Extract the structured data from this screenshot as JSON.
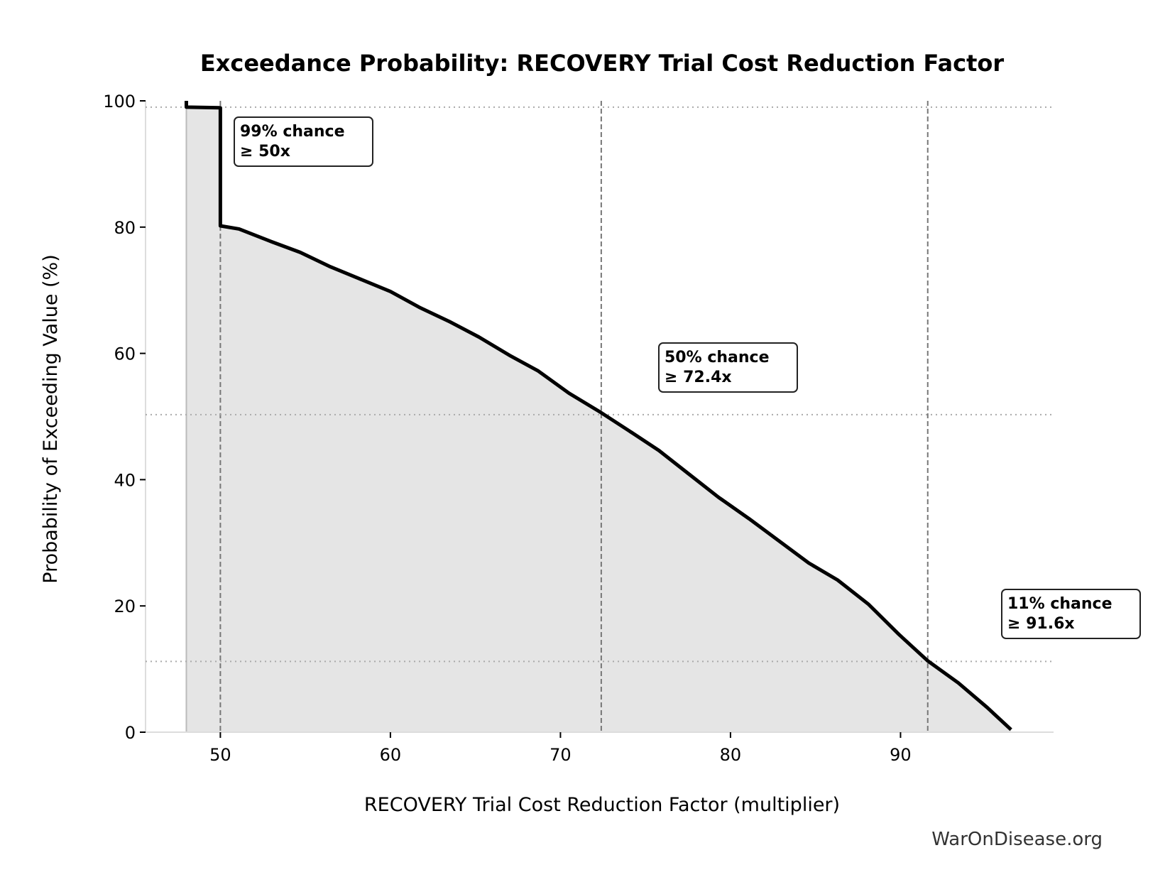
{
  "chart_data": {
    "type": "area",
    "title": "Exceedance Probability: RECOVERY Trial Cost Reduction Factor",
    "xlabel": "RECOVERY Trial Cost Reduction Factor (multiplier)",
    "ylabel": "Probability of Exceeding Value (%)",
    "xlim": [
      45.6,
      99.0
    ],
    "ylim": [
      0,
      100
    ],
    "xticks": [
      50,
      60,
      70,
      80,
      90
    ],
    "yticks": [
      0,
      20,
      40,
      60,
      80,
      100
    ],
    "grid": false,
    "line_color": "#000000",
    "fill_color": "#e5e5e5",
    "x": [
      48,
      48,
      50,
      50,
      51.1,
      52.9,
      54.7,
      56.4,
      58.2,
      60,
      61.7,
      63.5,
      65.2,
      67.0,
      68.7,
      70.5,
      72.4,
      74.0,
      75.8,
      77.5,
      79.3,
      81.1,
      82.8,
      84.6,
      86.3,
      88.1,
      89.9,
      91.6,
      93.4,
      95.1,
      96.5
    ],
    "y": [
      100,
      99,
      98.9,
      80.2,
      79.7,
      77.8,
      76.0,
      73.8,
      71.8,
      69.8,
      67.3,
      65.0,
      62.6,
      59.7,
      57.2,
      53.7,
      50.6,
      47.8,
      44.6,
      41.0,
      37.2,
      33.8,
      30.4,
      26.8,
      24.1,
      20.3,
      15.5,
      11.3,
      7.8,
      3.9,
      0.4
    ],
    "min_line": 48,
    "markers": [
      {
        "x": 50,
        "y": 99,
        "label1": "99% chance",
        "label2": "≥ 50x"
      },
      {
        "x": 72.4,
        "y": 50.3,
        "label1": "50% chance",
        "label2": "≥ 72.4x"
      },
      {
        "x": 91.6,
        "y": 11.2,
        "label1": "11% chance",
        "label2": "≥ 91.6x"
      }
    ]
  },
  "watermark": "WarOnDisease.org"
}
